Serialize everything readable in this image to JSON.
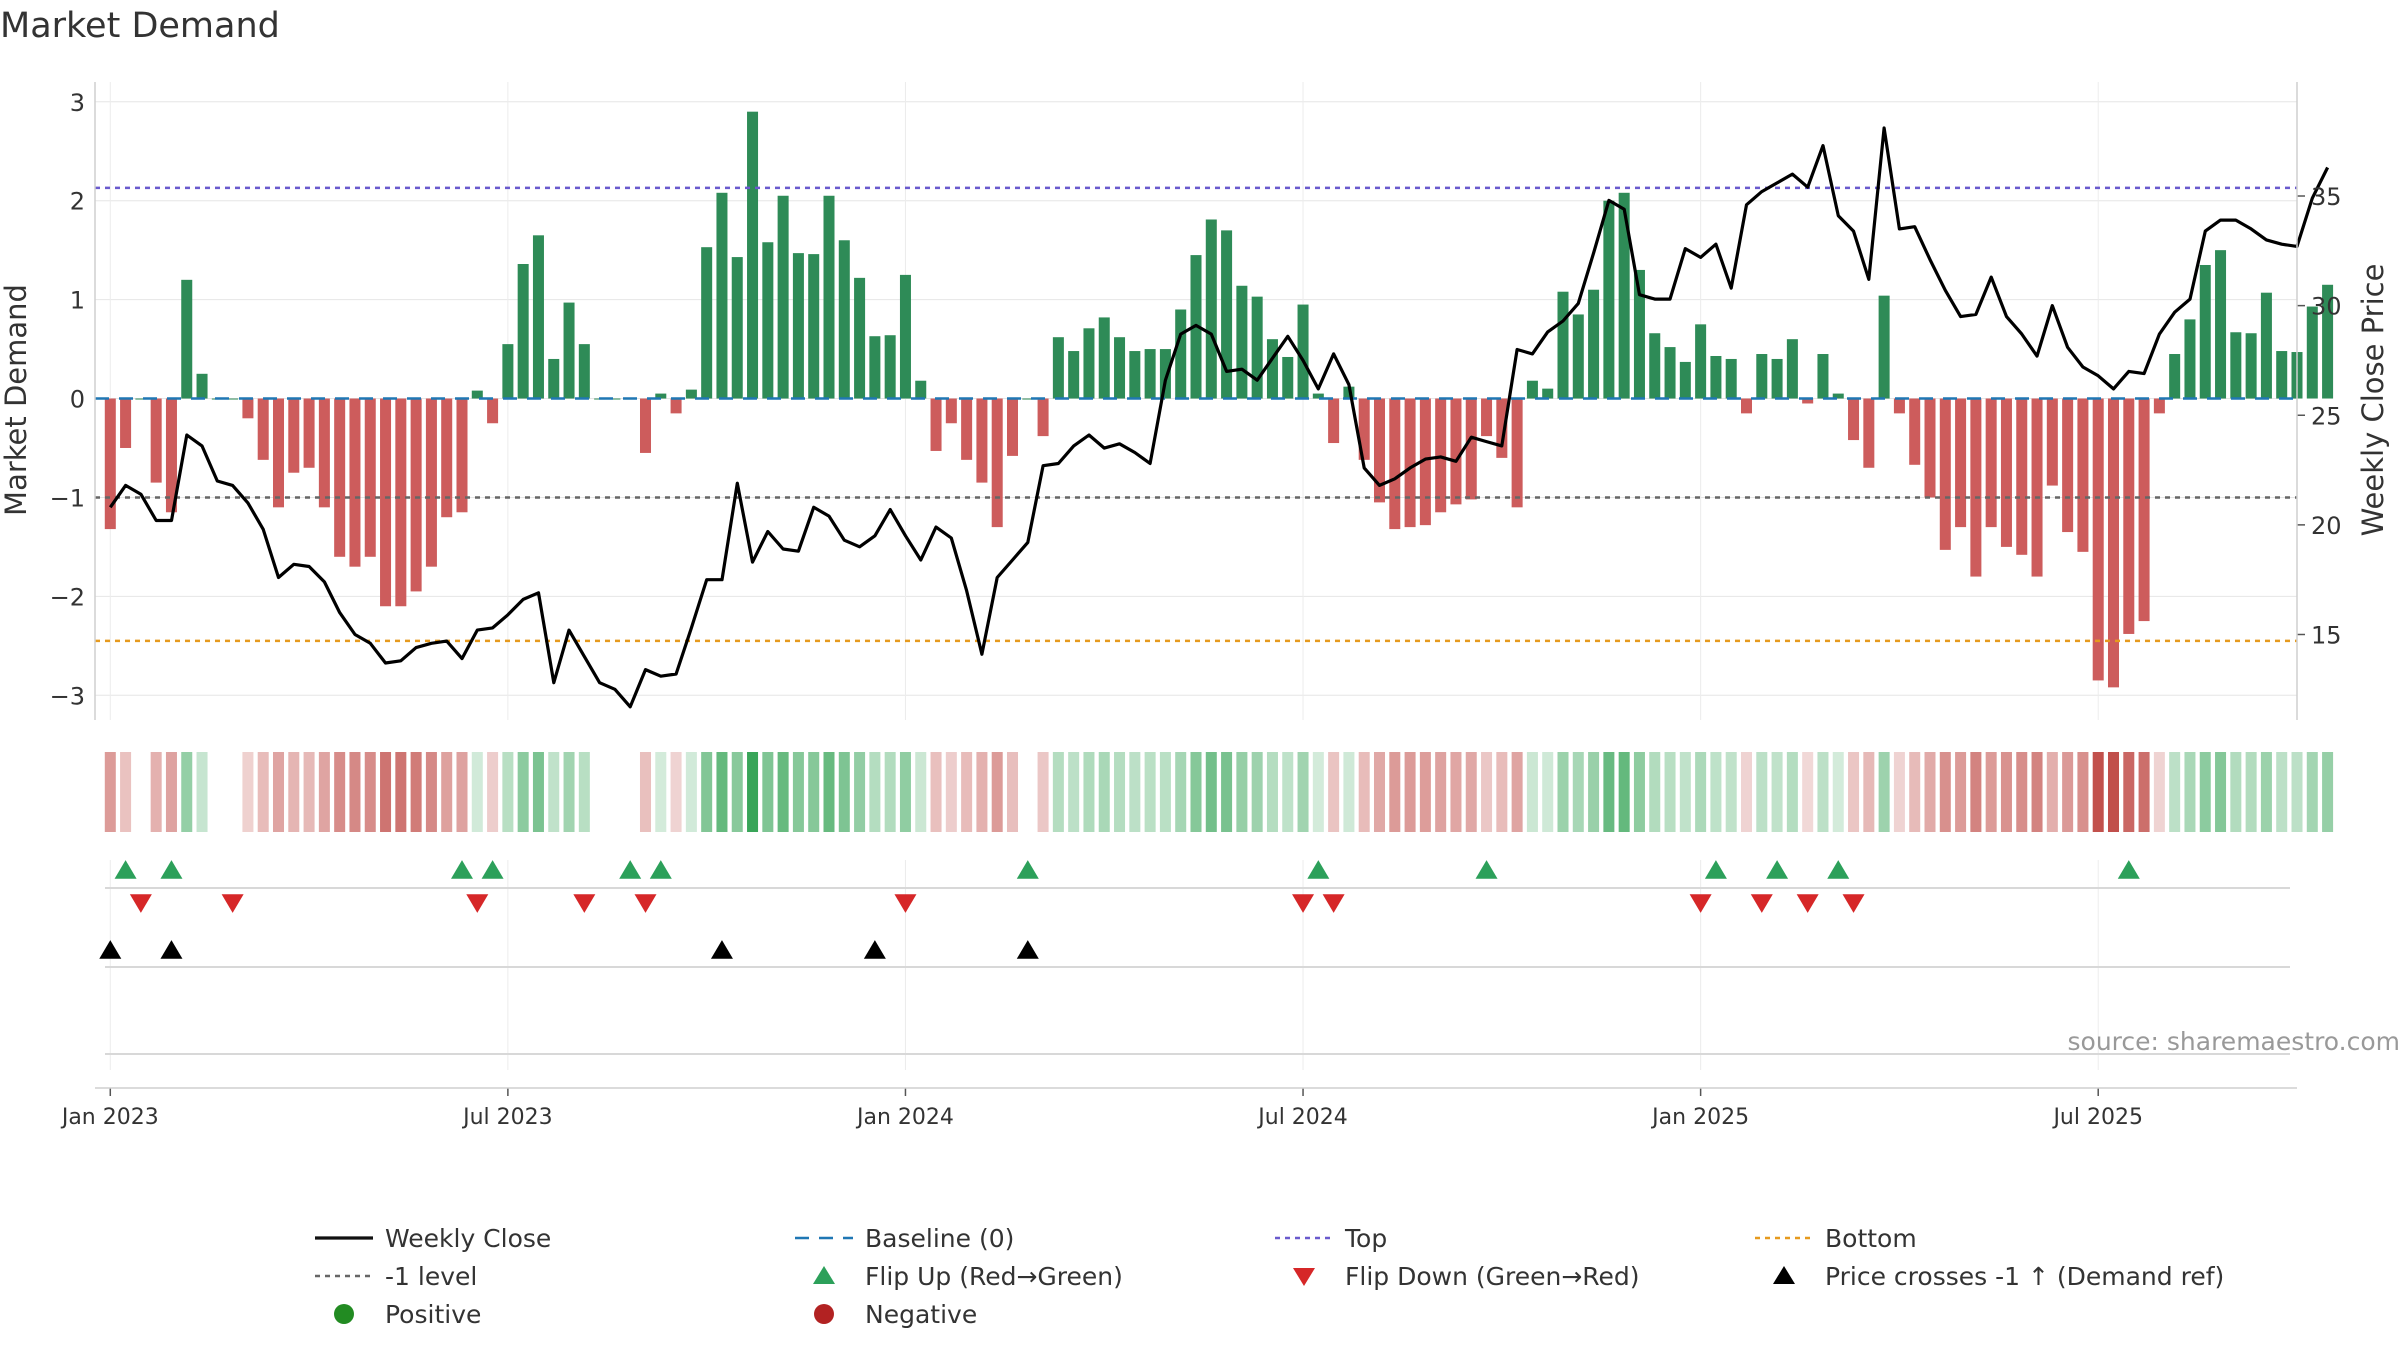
{
  "chart_data": {
    "type": "bar",
    "title": "Market Demand",
    "ylabel_left": "Market Demand",
    "ylabel_right": "Weekly Close Price",
    "source_text": "source: sharemaestro.com",
    "ylim_left": [
      -3.25,
      3.2
    ],
    "ylim_right": [
      11.1,
      40.2
    ],
    "yticks_left": [
      3,
      2,
      1,
      0,
      -1,
      -2,
      -3
    ],
    "yticks_left_labels": [
      "3",
      "2",
      "1",
      "0",
      "−1",
      "−2",
      "−3"
    ],
    "yticks_right": [
      35,
      30,
      25,
      20,
      15
    ],
    "yticks_right_labels": [
      "35",
      "30",
      "25",
      "20",
      "15"
    ],
    "x_ticks": [
      {
        "week": 0,
        "label": "Jan 2023"
      },
      {
        "week": 26,
        "label": "Jul 2023"
      },
      {
        "week": 52,
        "label": "Jan 2024"
      },
      {
        "week": 78,
        "label": "Jul 2024"
      },
      {
        "week": 104,
        "label": "Jan 2025"
      },
      {
        "week": 130,
        "label": "Jul 2025"
      }
    ],
    "x_range_weeks": [
      -1,
      143
    ],
    "reference_levels": {
      "top": 2.13,
      "bottom": -2.45,
      "minus_one": -1,
      "baseline": 0
    },
    "demand": [
      -1.32,
      -0.5,
      0,
      -0.85,
      -1.15,
      1.2,
      0.25,
      0,
      0,
      -0.2,
      -0.62,
      -1.1,
      -0.75,
      -0.7,
      -1.1,
      -1.6,
      -1.7,
      -1.6,
      -2.1,
      -2.1,
      -1.95,
      -1.7,
      -1.2,
      -1.15,
      0.08,
      -0.25,
      0.55,
      1.36,
      1.65,
      0.4,
      0.97,
      0.55,
      0,
      0,
      0,
      -0.55,
      0.05,
      -0.15,
      0.09,
      1.53,
      2.08,
      1.43,
      2.9,
      1.58,
      2.05,
      1.47,
      1.46,
      2.05,
      1.6,
      1.22,
      0.63,
      0.64,
      1.25,
      0.18,
      -0.53,
      -0.25,
      -0.62,
      -0.85,
      -1.3,
      -0.58,
      0,
      -0.38,
      0.62,
      0.48,
      0.71,
      0.82,
      0.62,
      0.48,
      0.5,
      0.5,
      0.9,
      1.45,
      1.81,
      1.7,
      1.14,
      1.03,
      0.6,
      0.42,
      0.95,
      0.05,
      -0.45,
      0.12,
      -0.62,
      -1.05,
      -1.32,
      -1.3,
      -1.28,
      -1.15,
      -1.07,
      -1.02,
      -0.38,
      -0.6,
      -1.1,
      0.18,
      0.1,
      1.08,
      0.85,
      1.1,
      2.0,
      2.08,
      1.3,
      0.66,
      0.52,
      0.37,
      0.75,
      0.43,
      0.4,
      -0.15,
      0.45,
      0.4,
      0.6,
      -0.05,
      0.45,
      0.05,
      -0.42,
      -0.7,
      1.04,
      -0.15,
      -0.67,
      -1.0,
      -1.53,
      -1.3,
      -1.8,
      -1.3,
      -1.5,
      -1.58,
      -1.8,
      -0.88,
      -1.35,
      -1.55,
      -2.85,
      -2.92,
      -2.38,
      -2.25,
      -0.15,
      0.45,
      0.8,
      1.35,
      1.5,
      0.67,
      0.66,
      1.07,
      0.48,
      0.47,
      0.93,
      1.15
    ],
    "close": [
      20.8,
      21.8,
      21.4,
      20.2,
      20.2,
      24.1,
      23.6,
      22.0,
      21.8,
      21.0,
      19.8,
      17.6,
      18.2,
      18.1,
      17.4,
      16.0,
      15.0,
      14.6,
      13.7,
      13.8,
      14.4,
      14.6,
      14.7,
      13.9,
      15.2,
      15.3,
      15.9,
      16.6,
      16.9,
      12.8,
      15.2,
      14.0,
      12.8,
      12.5,
      11.7,
      13.4,
      13.1,
      13.2,
      15.3,
      17.5,
      17.5,
      21.9,
      18.3,
      19.7,
      18.9,
      18.8,
      20.8,
      20.4,
      19.3,
      19.0,
      19.5,
      20.7,
      19.5,
      18.4,
      19.9,
      19.4,
      17.0,
      14.1,
      17.6,
      18.4,
      19.2,
      22.7,
      22.8,
      23.6,
      24.1,
      23.5,
      23.7,
      23.3,
      22.8,
      26.6,
      28.7,
      29.1,
      28.7,
      27.0,
      27.1,
      26.6,
      27.6,
      28.6,
      27.5,
      26.2,
      27.8,
      26.4,
      22.6,
      21.8,
      22.1,
      22.6,
      23.0,
      23.1,
      22.9,
      24.0,
      23.8,
      23.6,
      28.0,
      27.8,
      28.8,
      29.3,
      30.1,
      32.4,
      34.8,
      34.4,
      30.5,
      30.3,
      30.3,
      32.6,
      32.2,
      32.8,
      30.8,
      34.6,
      35.2,
      35.6,
      36.0,
      35.4,
      37.3,
      34.1,
      33.4,
      31.2,
      38.1,
      33.5,
      33.6,
      32.1,
      30.7,
      29.5,
      29.6,
      31.3,
      29.5,
      28.7,
      27.7,
      30.0,
      28.1,
      27.2,
      26.8,
      26.2,
      27.0,
      26.9,
      28.7,
      29.7,
      30.3,
      33.4,
      33.9,
      33.9,
      33.5,
      33.0,
      32.8,
      32.7,
      34.9,
      36.3
    ],
    "flip_up_weeks": [
      1,
      4,
      23,
      25,
      34,
      36,
      60,
      79,
      90,
      105,
      109,
      113,
      132
    ],
    "flip_down_weeks": [
      2,
      8,
      24,
      31,
      35,
      52,
      78,
      80,
      104,
      108,
      111,
      114
    ],
    "price_cross_weeks": [
      0,
      4,
      40,
      50,
      60
    ],
    "legend": [
      {
        "label": "Weekly Close",
        "color": "#111111"
      },
      {
        "label": "Baseline (0)",
        "color": "#1f77b4"
      },
      {
        "label": "Top",
        "color": "#6a5acd"
      },
      {
        "label": "Bottom",
        "color": "#e69a1e"
      },
      {
        "label": "-1 level",
        "color": "#666666"
      },
      {
        "label": "Flip Up (Red→Green)",
        "color": "#2ca05a"
      },
      {
        "label": "Flip Down (Green→Red)",
        "color": "#d62728"
      },
      {
        "label": "Price crosses -1 ↑ (Demand ref)",
        "color": "#000000"
      },
      {
        "label": "Positive",
        "color": "#228b22"
      },
      {
        "label": "Negative",
        "color": "#b22222"
      }
    ],
    "colors": {
      "positive_bar": "#2e8b57",
      "negative_bar": "#cd5c5c",
      "close_line": "#000000",
      "grid": "#e6e6e6"
    }
  }
}
